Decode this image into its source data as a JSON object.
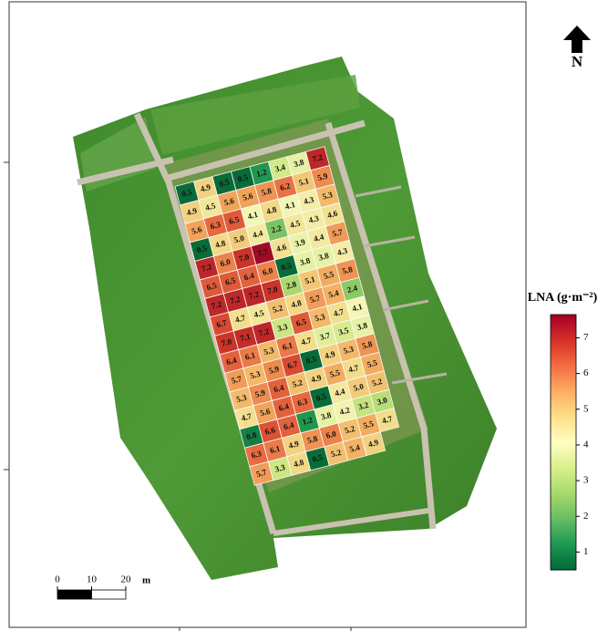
{
  "north_label": "N",
  "scale_bar": {
    "ticks": [
      0,
      10,
      20
    ],
    "unit": "m"
  },
  "legend": {
    "title": "LNA (g·m⁻²)",
    "range": [
      0.5,
      7.65
    ],
    "ticks": [
      1,
      2,
      3,
      4,
      5,
      6,
      7
    ],
    "colormap": [
      "#006837",
      "#1a9850",
      "#66bd63",
      "#a6d96a",
      "#d9ef8b",
      "#ffffbf",
      "#fee08b",
      "#fdae61",
      "#f46d43",
      "#d73027",
      "#a50026"
    ]
  },
  "grid": {
    "values": [
      [
        0.5,
        4.9,
        0.5,
        0.5,
        1.2,
        3.4,
        3.8,
        7.2
      ],
      [
        4.9,
        4.5,
        5.6,
        5.6,
        5.8,
        6.2,
        5.1,
        5.9
      ],
      [
        5.6,
        6.3,
        6.5,
        4.1,
        4.8,
        4.1,
        4.3,
        5.3
      ],
      [
        0.5,
        4.8,
        5.0,
        4.4,
        2.2,
        4.5,
        4.3,
        4.6
      ],
      [
        7.2,
        6.0,
        7.0,
        7.7,
        4.6,
        3.9,
        4.4,
        5.7
      ],
      [
        6.5,
        6.5,
        6.4,
        6.0,
        0.5,
        3.8,
        3.8,
        4.3
      ],
      [
        7.2,
        7.2,
        7.2,
        7.0,
        2.8,
        5.1,
        5.5,
        5.8
      ],
      [
        6.7,
        4.7,
        4.5,
        5.2,
        4.8,
        5.7,
        5.4,
        2.4
      ],
      [
        7.0,
        7.1,
        7.2,
        3.3,
        6.5,
        5.3,
        4.7,
        4.1
      ],
      [
        6.4,
        6.1,
        5.3,
        6.1,
        4.7,
        3.7,
        3.5,
        3.8
      ],
      [
        5.7,
        5.3,
        5.9,
        6.7,
        0.5,
        4.9,
        5.3,
        5.8
      ],
      [
        5.3,
        5.9,
        6.4,
        5.2,
        4.9,
        5.5,
        4.7,
        5.5
      ],
      [
        4.7,
        5.6,
        6.4,
        6.3,
        0.5,
        4.4,
        5.0,
        5.2
      ],
      [
        0.8,
        6.6,
        6.4,
        1.2,
        3.8,
        4.2,
        3.2,
        3.0
      ],
      [
        6.3,
        6.1,
        4.9,
        5.8,
        6.0,
        5.2,
        5.5,
        4.7
      ],
      [
        5.7,
        3.3,
        4.8,
        0.5,
        5.2,
        5.4,
        4.9
      ]
    ],
    "value_labels": [
      [
        "0.5",
        "4.9",
        "0.5",
        "0.5",
        "1.2",
        "3.4",
        "3.8",
        "7.2"
      ],
      [
        "4.9",
        "4.5",
        "5.6",
        "5.6",
        "5.8",
        "6.2",
        "5.1",
        "5.9"
      ],
      [
        "5.6",
        "6.3",
        "6.5",
        "4.1",
        "4.8",
        "4.1",
        "4.3",
        "5.3"
      ],
      [
        "0.5",
        "4.8",
        "5.0",
        "4.4",
        "2.2",
        "4.5",
        "4.3",
        "4.6"
      ],
      [
        "7.2",
        "6.0",
        "7.0",
        "7.7",
        "4.6",
        "3.9",
        "4.4",
        "5.7"
      ],
      [
        "6.5",
        "6.5",
        "6.4",
        "6.0",
        "0.5",
        "3.8",
        "3.8",
        "4.3"
      ],
      [
        "7.2",
        "7.2",
        "7.2",
        "7.0",
        "2.8",
        "5.1",
        "5.5",
        "5.8"
      ],
      [
        "6.7",
        "4.7",
        "4.5",
        "5.2",
        "4.8",
        "5.7",
        "5.4",
        "2.4"
      ],
      [
        "7.0",
        "7.1",
        "7.2",
        "3.3",
        "6.5",
        "5.3",
        "4.7",
        "4.1"
      ],
      [
        "6.4",
        "6.1",
        "5.3",
        "6.1",
        "4.7",
        "3.7",
        "3.5",
        "3.8"
      ],
      [
        "5.7",
        "5.3",
        "5.9",
        "6.7",
        "0.5",
        "4.9",
        "5.3",
        "5.8"
      ],
      [
        "5.3",
        "5.9",
        "6.4",
        "5.2",
        "4.9",
        "5.5",
        "4.7",
        "5.5"
      ],
      [
        "4.7",
        "5.6",
        "6.4",
        "6.3",
        "0.5",
        "4.4",
        "5.0",
        "5.2"
      ],
      [
        "0.8",
        "6.6",
        "6.4",
        "1.2",
        "3.8",
        "4.2",
        "3.2",
        "3.0"
      ],
      [
        "6.3",
        "6.1",
        "4.9",
        "5.8",
        "6.0",
        "5.2",
        "5.5",
        "4.7"
      ],
      [
        "5.7",
        "3.3",
        "4.8",
        "0.5",
        "5.2",
        "5.4",
        "4.9"
      ]
    ]
  }
}
